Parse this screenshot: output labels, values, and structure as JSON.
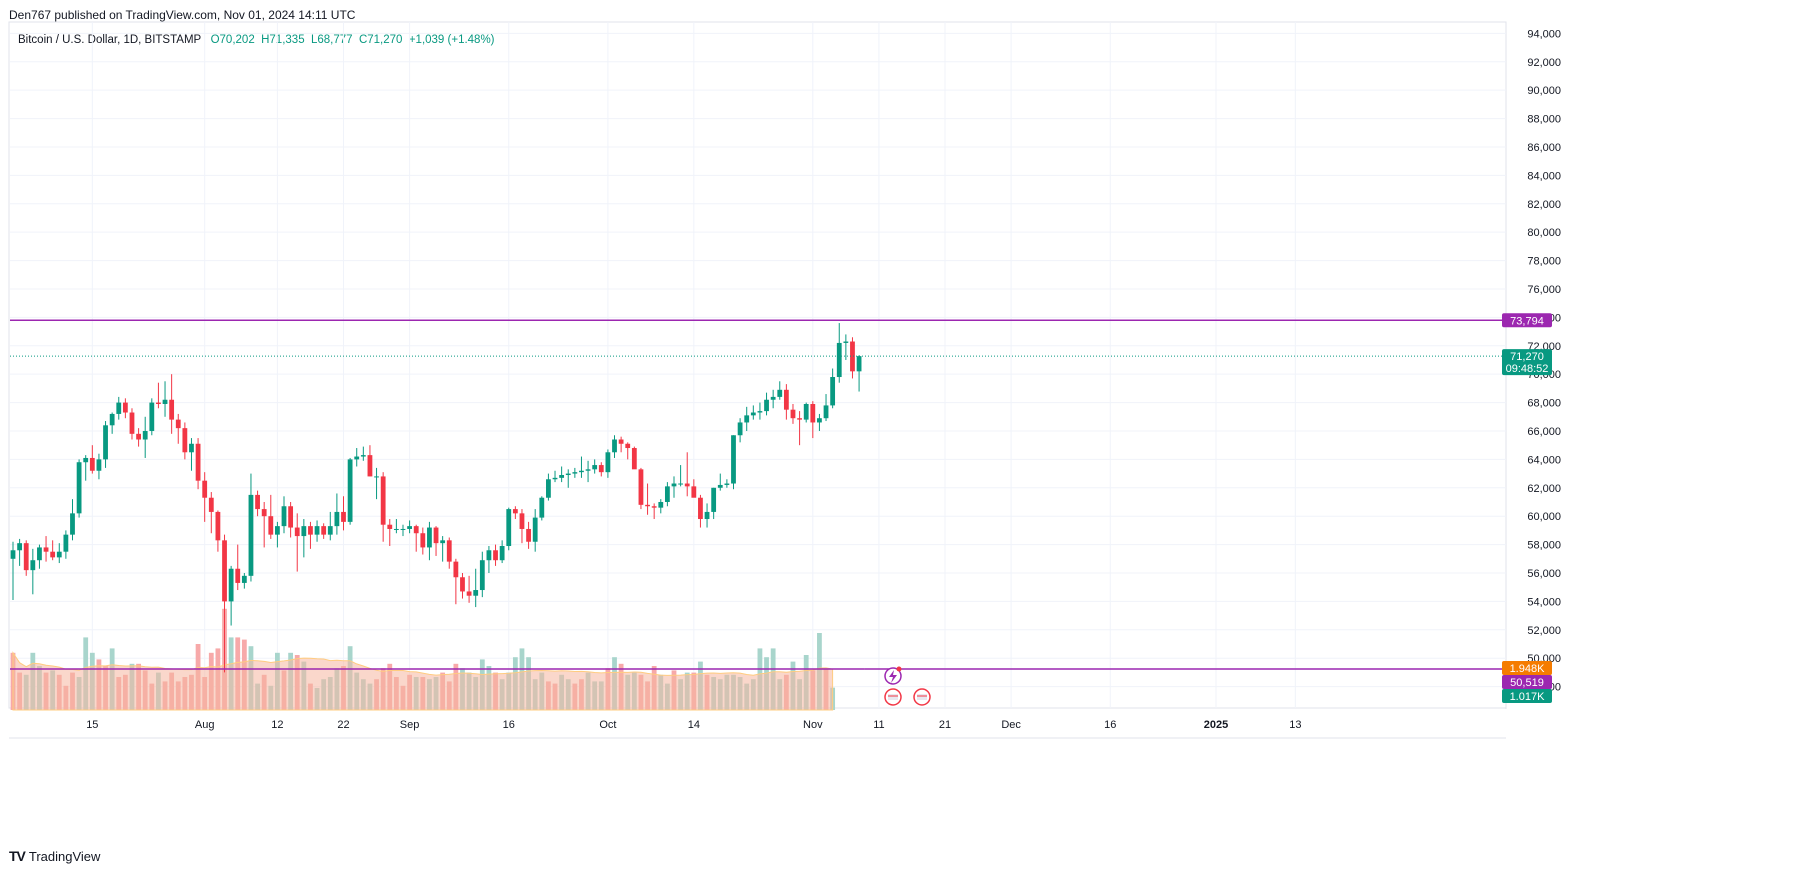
{
  "header": {
    "publisher_line": "Den767 published on TradingView.com, Nov 01, 2024 14:11 UTC"
  },
  "legend": {
    "symbol": "Bitcoin / U.S. Dollar, 1D, BITSTAMP",
    "open": "O70,202",
    "high": "H71,335",
    "low": "L68,777",
    "close": "C71,270",
    "change": "+1,039 (+1.48%)"
  },
  "footer": {
    "brand": "TradingView",
    "logo_text": "TV"
  },
  "colors": {
    "up": "#089981",
    "down": "#f23645",
    "up_volume": "#a8d5cc",
    "down_volume": "#f7a9a9",
    "level": "#9c27b0",
    "grid": "#f0f3fa",
    "axis_text": "#131722",
    "vol_ma": "#ffcc80",
    "label_orange": "#f57c00",
    "volume_fill": "#f5b7a0"
  },
  "chart_data": {
    "type": "candlestick",
    "title": "Bitcoin / U.S. Dollar, 1D, BITSTAMP",
    "ylim": [
      46000,
      94800
    ],
    "y_ticks": [
      "94,000",
      "92,000",
      "90,000",
      "88,000",
      "86,000",
      "84,000",
      "82,000",
      "80,000",
      "78,000",
      "76,000",
      "74,000",
      "72,000",
      "70,000",
      "68,000",
      "66,000",
      "64,000",
      "62,000",
      "60,000",
      "58,000",
      "56,000",
      "54,000",
      "52,000",
      "50,000",
      "48,000"
    ],
    "y_tick_values": [
      94000,
      92000,
      90000,
      88000,
      86000,
      84000,
      82000,
      80000,
      78000,
      76000,
      74000,
      72000,
      70000,
      68000,
      66000,
      64000,
      62000,
      60000,
      58000,
      56000,
      54000,
      52000,
      50000,
      48000
    ],
    "x_ticks": [
      {
        "label": "15",
        "index": 12,
        "bold": false
      },
      {
        "label": "Aug",
        "index": 29,
        "bold": false
      },
      {
        "label": "12",
        "index": 40,
        "bold": false
      },
      {
        "label": "22",
        "index": 50,
        "bold": false
      },
      {
        "label": "Sep",
        "index": 60,
        "bold": false
      },
      {
        "label": "16",
        "index": 75,
        "bold": false
      },
      {
        "label": "Oct",
        "index": 90,
        "bold": false
      },
      {
        "label": "14",
        "index": 103,
        "bold": false
      },
      {
        "label": "Nov",
        "index": 121,
        "bold": false
      },
      {
        "label": "11",
        "index": 131,
        "bold": false
      },
      {
        "label": "21",
        "index": 141,
        "bold": false
      },
      {
        "label": "Dec",
        "index": 151,
        "bold": false
      },
      {
        "label": "16",
        "index": 166,
        "bold": false
      },
      {
        "label": "2025",
        "index": 182,
        "bold": true
      },
      {
        "label": "13",
        "index": 194,
        "bold": false
      }
    ],
    "candles": [
      [
        57000,
        58200,
        54100,
        57600
      ],
      [
        57600,
        58400,
        56500,
        58100
      ],
      [
        58100,
        58300,
        55800,
        56200
      ],
      [
        56200,
        57700,
        54500,
        56900
      ],
      [
        56900,
        58000,
        56300,
        57800
      ],
      [
        57800,
        58600,
        56800,
        57500
      ],
      [
        57500,
        58300,
        56900,
        57100
      ],
      [
        57100,
        58100,
        56700,
        57500
      ],
      [
        57500,
        59000,
        57000,
        58700
      ],
      [
        58700,
        61200,
        58300,
        60200
      ],
      [
        60200,
        64000,
        59900,
        63800
      ],
      [
        63800,
        64300,
        62500,
        64100
      ],
      [
        64100,
        65000,
        63000,
        63200
      ],
      [
        63200,
        64400,
        62600,
        64000
      ],
      [
        64000,
        66700,
        63400,
        66400
      ],
      [
        66400,
        67300,
        65800,
        67200
      ],
      [
        67200,
        68400,
        66800,
        68000
      ],
      [
        68000,
        68300,
        66900,
        67300
      ],
      [
        67300,
        67600,
        65400,
        65800
      ],
      [
        65800,
        66200,
        64900,
        65400
      ],
      [
        65400,
        67000,
        64100,
        66000
      ],
      [
        66000,
        68300,
        65700,
        68000
      ],
      [
        68000,
        69400,
        67600,
        67900
      ],
      [
        67900,
        69500,
        67000,
        68200
      ],
      [
        68200,
        70000,
        65800,
        66800
      ],
      [
        66800,
        67200,
        65100,
        66200
      ],
      [
        66200,
        66600,
        64000,
        64500
      ],
      [
        64500,
        65500,
        63200,
        65100
      ],
      [
        65100,
        65500,
        61900,
        62500
      ],
      [
        62500,
        63100,
        59600,
        61300
      ],
      [
        61300,
        61700,
        58800,
        60300
      ],
      [
        60300,
        60400,
        57500,
        58300
      ],
      [
        58300,
        58700,
        49000,
        54000
      ],
      [
        54000,
        56500,
        52300,
        56300
      ],
      [
        56300,
        58000,
        54800,
        55300
      ],
      [
        55300,
        56000,
        54900,
        55800
      ],
      [
        55800,
        63000,
        55400,
        61500
      ],
      [
        61500,
        61800,
        60000,
        60500
      ],
      [
        60500,
        61000,
        57800,
        60000
      ],
      [
        60000,
        61500,
        58400,
        58700
      ],
      [
        58700,
        59600,
        57800,
        59300
      ],
      [
        59300,
        61400,
        58800,
        60700
      ],
      [
        60700,
        61000,
        58500,
        59200
      ],
      [
        59200,
        60200,
        56100,
        58600
      ],
      [
        58600,
        59800,
        57100,
        59300
      ],
      [
        59300,
        59600,
        57700,
        58700
      ],
      [
        58700,
        59700,
        58200,
        59300
      ],
      [
        59300,
        59500,
        58400,
        58700
      ],
      [
        58700,
        60300,
        58300,
        59300
      ],
      [
        59300,
        61600,
        58700,
        60300
      ],
      [
        60300,
        61400,
        59000,
        59600
      ],
      [
        59600,
        64100,
        59400,
        64000
      ],
      [
        64000,
        64800,
        63500,
        64200
      ],
      [
        64200,
        64900,
        63900,
        64300
      ],
      [
        64300,
        65000,
        62800,
        62800
      ],
      [
        62800,
        63400,
        61200,
        62800
      ],
      [
        62800,
        63100,
        58200,
        59400
      ],
      [
        59400,
        59800,
        57900,
        59100
      ],
      [
        59100,
        59800,
        58800,
        59100
      ],
      [
        59100,
        59400,
        58600,
        59100
      ],
      [
        59100,
        59700,
        58800,
        59300
      ],
      [
        59300,
        59400,
        57500,
        58800
      ],
      [
        58800,
        59200,
        57300,
        57800
      ],
      [
        57800,
        59600,
        56900,
        59200
      ],
      [
        59200,
        59300,
        57200,
        58100
      ],
      [
        58100,
        58600,
        56800,
        58300
      ],
      [
        58300,
        58500,
        56300,
        56800
      ],
      [
        56800,
        57000,
        53800,
        55700
      ],
      [
        55700,
        56000,
        54200,
        54700
      ],
      [
        54700,
        55800,
        53900,
        54400
      ],
      [
        54400,
        56300,
        53600,
        54800
      ],
      [
        54800,
        57500,
        54300,
        56900
      ],
      [
        56900,
        57900,
        56000,
        57600
      ],
      [
        57600,
        58000,
        56500,
        56900
      ],
      [
        56900,
        58300,
        56700,
        57900
      ],
      [
        57900,
        60600,
        57600,
        60500
      ],
      [
        60500,
        60700,
        59800,
        60200
      ],
      [
        60200,
        60500,
        58100,
        59100
      ],
      [
        59100,
        59600,
        57700,
        58200
      ],
      [
        58200,
        60500,
        57500,
        59900
      ],
      [
        59900,
        61400,
        59700,
        61300
      ],
      [
        61300,
        63000,
        61100,
        62600
      ],
      [
        62600,
        63200,
        62400,
        62700
      ],
      [
        62700,
        63500,
        62400,
        62900
      ],
      [
        62900,
        63300,
        62000,
        63000
      ],
      [
        63000,
        63400,
        62700,
        63100
      ],
      [
        63100,
        64200,
        62700,
        63200
      ],
      [
        63200,
        63900,
        62400,
        63300
      ],
      [
        63300,
        64000,
        63000,
        63600
      ],
      [
        63600,
        63800,
        62800,
        63100
      ],
      [
        63100,
        64700,
        62700,
        64500
      ],
      [
        64500,
        65700,
        64100,
        65400
      ],
      [
        65400,
        65600,
        64500,
        65100
      ],
      [
        65100,
        65200,
        64000,
        64800
      ],
      [
        64800,
        64900,
        63600,
        63300
      ],
      [
        63300,
        63400,
        60500,
        60800
      ],
      [
        60800,
        62300,
        60100,
        60700
      ],
      [
        60700,
        60900,
        59800,
        60600
      ],
      [
        60600,
        61200,
        60200,
        61000
      ],
      [
        61000,
        62400,
        60700,
        62100
      ],
      [
        62100,
        62800,
        61300,
        62300
      ],
      [
        62300,
        63600,
        62100,
        62300
      ],
      [
        62300,
        64500,
        61400,
        62100
      ],
      [
        62100,
        62600,
        61400,
        61300
      ],
      [
        61300,
        61500,
        59200,
        59800
      ],
      [
        59800,
        60900,
        59200,
        60300
      ],
      [
        60300,
        62000,
        59800,
        62000
      ],
      [
        62000,
        63000,
        61800,
        62200
      ],
      [
        62200,
        62600,
        62000,
        62300
      ],
      [
        62300,
        65700,
        61900,
        65700
      ],
      [
        65700,
        66900,
        65200,
        66600
      ],
      [
        66600,
        67700,
        66000,
        67100
      ],
      [
        67100,
        67800,
        66800,
        67300
      ],
      [
        67300,
        68000,
        66800,
        67400
      ],
      [
        67400,
        68700,
        67100,
        68200
      ],
      [
        68200,
        68900,
        67600,
        68400
      ],
      [
        68400,
        69500,
        68200,
        68900
      ],
      [
        68900,
        69300,
        66800,
        67500
      ],
      [
        67500,
        67900,
        66500,
        66900
      ],
      [
        66900,
        67400,
        65000,
        66800
      ],
      [
        66800,
        68000,
        66600,
        67900
      ],
      [
        67900,
        68100,
        65500,
        66600
      ],
      [
        66600,
        67200,
        66000,
        66900
      ],
      [
        66900,
        68600,
        66700,
        67800
      ],
      [
        67800,
        70400,
        67600,
        69800
      ],
      [
        69800,
        73600,
        69400,
        72200
      ],
      [
        72200,
        72800,
        71000,
        72300
      ],
      [
        72300,
        72600,
        69700,
        70200
      ],
      [
        70200,
        71335,
        68777,
        71270
      ]
    ],
    "volumes": [
      [
        2.6,
        "d"
      ],
      [
        1.7,
        "d"
      ],
      [
        1.6,
        "u"
      ],
      [
        2.6,
        "u"
      ],
      [
        2.0,
        "u"
      ],
      [
        1.7,
        "d"
      ],
      [
        1.8,
        "u"
      ],
      [
        1.6,
        "d"
      ],
      [
        1.1,
        "d"
      ],
      [
        1.7,
        "d"
      ],
      [
        1.5,
        "u"
      ],
      [
        3.3,
        "u"
      ],
      [
        2.6,
        "u"
      ],
      [
        2.3,
        "d"
      ],
      [
        2.0,
        "d"
      ],
      [
        2.8,
        "u"
      ],
      [
        1.5,
        "d"
      ],
      [
        1.6,
        "d"
      ],
      [
        2.1,
        "u"
      ],
      [
        2.1,
        "d"
      ],
      [
        1.8,
        "d"
      ],
      [
        1.2,
        "d"
      ],
      [
        1.7,
        "u"
      ],
      [
        1.3,
        "d"
      ],
      [
        1.7,
        "d"
      ],
      [
        1.3,
        "d"
      ],
      [
        1.5,
        "d"
      ],
      [
        1.6,
        "d"
      ],
      [
        3.0,
        "d"
      ],
      [
        1.5,
        "d"
      ],
      [
        2.6,
        "d"
      ],
      [
        2.8,
        "d"
      ],
      [
        4.6,
        "d"
      ],
      [
        3.3,
        "u"
      ],
      [
        3.3,
        "d"
      ],
      [
        3.2,
        "d"
      ],
      [
        2.9,
        "u"
      ],
      [
        1.2,
        "u"
      ],
      [
        1.6,
        "d"
      ],
      [
        1.1,
        "u"
      ],
      [
        2.6,
        "u"
      ],
      [
        1.8,
        "d"
      ],
      [
        2.6,
        "u"
      ],
      [
        2.5,
        "d"
      ],
      [
        2.2,
        "u"
      ],
      [
        1.2,
        "d"
      ],
      [
        1.0,
        "u"
      ],
      [
        1.4,
        "u"
      ],
      [
        1.5,
        "u"
      ],
      [
        1.9,
        "u"
      ],
      [
        2.0,
        "d"
      ],
      [
        2.9,
        "u"
      ],
      [
        1.7,
        "u"
      ],
      [
        1.4,
        "u"
      ],
      [
        1.2,
        "u"
      ],
      [
        1.4,
        "d"
      ],
      [
        1.9,
        "d"
      ],
      [
        2.1,
        "d"
      ],
      [
        1.5,
        "d"
      ],
      [
        1.1,
        "d"
      ],
      [
        1.6,
        "d"
      ],
      [
        1.5,
        "u"
      ],
      [
        1.5,
        "d"
      ],
      [
        1.4,
        "u"
      ],
      [
        1.5,
        "u"
      ],
      [
        1.7,
        "d"
      ],
      [
        1.3,
        "d"
      ],
      [
        2.1,
        "d"
      ],
      [
        1.9,
        "u"
      ],
      [
        1.7,
        "u"
      ],
      [
        1.5,
        "u"
      ],
      [
        2.3,
        "u"
      ],
      [
        2.0,
        "u"
      ],
      [
        1.7,
        "d"
      ],
      [
        1.4,
        "u"
      ],
      [
        1.7,
        "u"
      ],
      [
        2.4,
        "u"
      ],
      [
        2.8,
        "u"
      ],
      [
        2.4,
        "u"
      ],
      [
        1.4,
        "u"
      ],
      [
        1.7,
        "u"
      ],
      [
        1.3,
        "d"
      ],
      [
        1.2,
        "d"
      ],
      [
        1.6,
        "u"
      ],
      [
        1.4,
        "u"
      ],
      [
        1.2,
        "d"
      ],
      [
        1.4,
        "d"
      ],
      [
        1.7,
        "u"
      ],
      [
        1.3,
        "u"
      ],
      [
        1.3,
        "u"
      ],
      [
        1.9,
        "d"
      ],
      [
        2.4,
        "u"
      ],
      [
        2.1,
        "d"
      ],
      [
        1.6,
        "u"
      ],
      [
        1.7,
        "u"
      ],
      [
        1.6,
        "d"
      ],
      [
        1.3,
        "d"
      ],
      [
        2.0,
        "d"
      ],
      [
        1.6,
        "u"
      ],
      [
        1.2,
        "u"
      ],
      [
        1.8,
        "d"
      ],
      [
        1.4,
        "u"
      ],
      [
        1.7,
        "u"
      ],
      [
        1.7,
        "d"
      ],
      [
        2.2,
        "u"
      ],
      [
        1.6,
        "d"
      ],
      [
        1.5,
        "u"
      ],
      [
        1.4,
        "u"
      ],
      [
        1.6,
        "u"
      ],
      [
        1.6,
        "u"
      ],
      [
        1.5,
        "u"
      ],
      [
        1.2,
        "u"
      ],
      [
        1.4,
        "u"
      ],
      [
        2.8,
        "u"
      ],
      [
        2.4,
        "u"
      ],
      [
        2.8,
        "u"
      ],
      [
        1.4,
        "u"
      ],
      [
        1.6,
        "d"
      ],
      [
        2.2,
        "u"
      ],
      [
        1.4,
        "u"
      ],
      [
        2.5,
        "u"
      ],
      [
        1.8,
        "d"
      ],
      [
        3.5,
        "u"
      ],
      [
        1.9,
        "d"
      ],
      [
        1.017,
        "u"
      ]
    ],
    "levels": [
      {
        "value": 73794,
        "label": "73,794"
      },
      {
        "value": 50519,
        "label": "50,519"
      }
    ],
    "last_price": {
      "value": 71270,
      "label": "71,270",
      "countdown": "09:48:52"
    },
    "volume_labels": [
      {
        "label": "1.948K",
        "kind": "ma"
      },
      {
        "label": "1.017K",
        "kind": "vol"
      }
    ]
  }
}
